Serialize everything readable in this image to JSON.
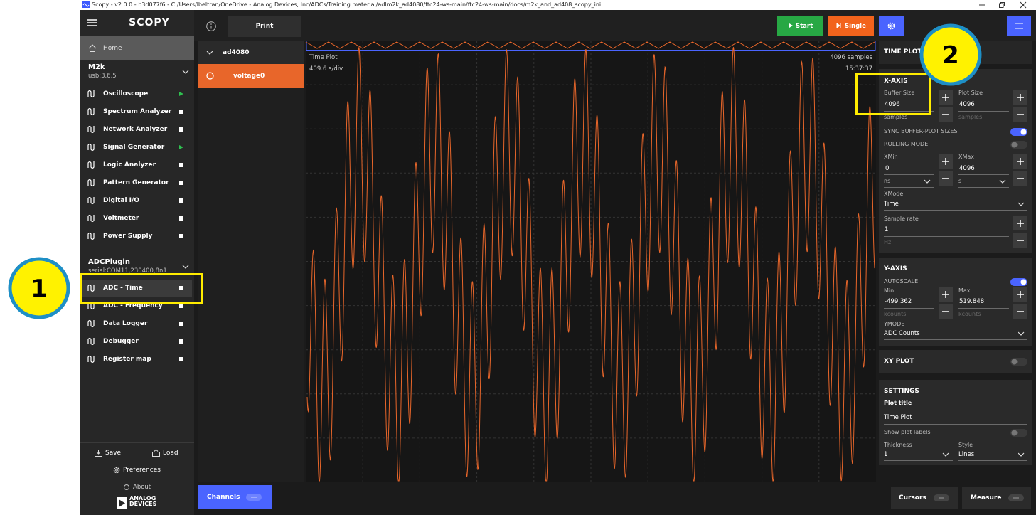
{
  "window": {
    "title": "Scopy - v2.0.0 - b3d077f6 - C:/Users/lbeltran/OneDrive - Analog Devices, Inc/ADCs/Training material/adlm2k_ad4080/ftc24-ws-main/ftc24-ws-main/docs/m2k_and_ad408_scopy_ini"
  },
  "sidebar": {
    "logo": "SCOPY",
    "home": "Home",
    "devices": [
      {
        "name": "M2k",
        "uri": "usb:3.6.5",
        "tools": [
          "Oscilloscope",
          "Spectrum Analyzer",
          "Network Analyzer",
          "Signal Generator",
          "Logic Analyzer",
          "Pattern Generator",
          "Digital I/O",
          "Voltmeter",
          "Power Supply"
        ]
      },
      {
        "name": "ADCPlugin",
        "uri": "serial:COM11,230400,8n1",
        "tools": [
          "ADC - Time",
          "ADC - Frequency",
          "Data Logger",
          "Debugger",
          "Register map"
        ]
      }
    ],
    "footer": {
      "save": "Save",
      "load": "Load",
      "preferences": "Preferences",
      "about": "About",
      "brand": [
        "ANALOG",
        "DEVICES"
      ]
    }
  },
  "toolbar": {
    "print": "Print",
    "start": "Start",
    "single": "Single"
  },
  "channels": {
    "device": "ad4080",
    "channel": "voltage0",
    "button": "Channels"
  },
  "plot": {
    "title": "Time Plot",
    "samples": "4096 samples",
    "div": "409.6 s/div",
    "time": "15:37:37"
  },
  "panel": {
    "tab": "TIME PLOT",
    "x_axis": {
      "heading": "X-AXIS",
      "buffer_size": {
        "label": "Buffer Size",
        "value": "4096",
        "unit": "samples"
      },
      "plot_size": {
        "label": "Plot Size",
        "value": "4096",
        "unit": "samples"
      },
      "sync": "SYNC BUFFER-PLOT SIZES",
      "rolling": "ROLLING MODE",
      "xmin": {
        "label": "XMin",
        "value": "0",
        "unit": "ns"
      },
      "xmax": {
        "label": "XMax",
        "value": "4096",
        "unit": "s"
      },
      "xmode": {
        "label": "XMode",
        "value": "Time"
      },
      "sample_rate": {
        "label": "Sample rate",
        "value": "1",
        "unit": "Hz"
      }
    },
    "y_axis": {
      "heading": "Y-AXIS",
      "autoscale": "AUTOSCALE",
      "min": {
        "label": "Min",
        "value": "-499.362",
        "unit": "kcounts"
      },
      "max": {
        "label": "Max",
        "value": "519.848",
        "unit": "kcounts"
      },
      "ymode": {
        "label": "YMODE",
        "value": "ADC Counts"
      }
    },
    "xy_plot": "XY PLOT",
    "settings": {
      "heading": "SETTINGS",
      "plot_title": {
        "label": "Plot title",
        "value": "Time Plot"
      },
      "show_labels": "Show plot labels",
      "thickness": {
        "label": "Thickness",
        "value": "1"
      },
      "style": {
        "label": "Style",
        "value": "Lines"
      }
    }
  },
  "bottom": {
    "cursors": "Cursors",
    "measure": "Measure"
  },
  "callouts": [
    "1",
    "2"
  ]
}
